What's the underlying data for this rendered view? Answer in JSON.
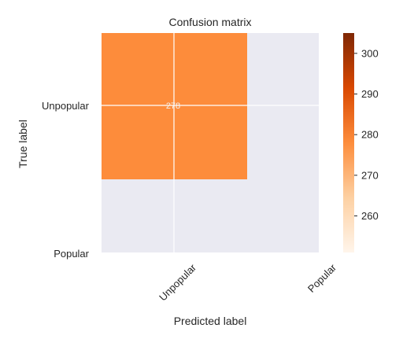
{
  "chart_data": {
    "type": "heatmap",
    "title": "Confusion matrix",
    "xlabel": "Predicted label",
    "ylabel": "True label",
    "x_categories": [
      "Unpopular",
      "Popular"
    ],
    "y_categories": [
      "Unpopular",
      "Popular"
    ],
    "values": [
      [
        278,
        null
      ],
      [
        null,
        null
      ]
    ],
    "cell_labels": [
      {
        "row": 0,
        "col": 0,
        "text": "278"
      }
    ],
    "colormap": "Oranges",
    "colorbar": {
      "ticks": [
        260,
        270,
        280,
        290,
        300
      ],
      "range": [
        251,
        305
      ],
      "gradient": [
        "#fff5eb",
        "#fdd0a2",
        "#fd8d3c",
        "#d94801",
        "#7f2704"
      ]
    },
    "colors": {
      "cell_fill": "#fd8c3b",
      "empty_cell": "#eaeaf2",
      "grid": "#ffffff",
      "cell_label": "#f2f2f2",
      "text": "#262626"
    },
    "grid": true
  }
}
